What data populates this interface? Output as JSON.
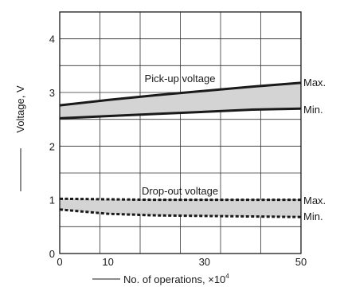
{
  "chart_data": {
    "type": "area",
    "xlabel": "No. of operations, ×10",
    "xlabel_superscript": "4",
    "ylabel": "Voltage, V",
    "xticks": [
      0,
      10,
      30,
      50
    ],
    "yticks": [
      0,
      1,
      2,
      3,
      4
    ],
    "xlim": [
      0,
      50
    ],
    "ylim": [
      0,
      4.5
    ],
    "grid": true,
    "x": [
      0,
      10,
      20,
      30,
      40,
      50
    ],
    "bands": [
      {
        "label": "Pick-up voltage",
        "max": [
          2.76,
          2.86,
          2.95,
          3.03,
          3.11,
          3.18
        ],
        "min": [
          2.52,
          2.56,
          2.6,
          2.64,
          2.68,
          2.7
        ],
        "line_style": "solid",
        "max_label": "Max.",
        "min_label": "Min."
      },
      {
        "label": "Drop-out voltage",
        "max": [
          1.02,
          1.01,
          1.0,
          1.0,
          1.0,
          1.0
        ],
        "min": [
          0.82,
          0.74,
          0.71,
          0.7,
          0.69,
          0.68
        ],
        "line_style": "dashed",
        "max_label": "Max.",
        "min_label": "Min."
      }
    ],
    "colors": {
      "band_fill": "#d4d4d4",
      "line": "#1a1a1a",
      "grid": "#333333"
    }
  }
}
